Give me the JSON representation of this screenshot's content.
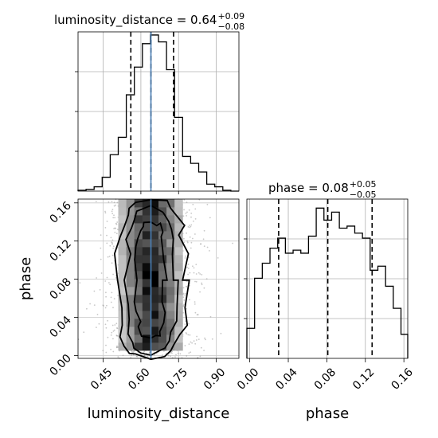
{
  "chart_data": [
    {
      "panel": "luminosity_distance-marginal",
      "type": "histogram",
      "title_main": "luminosity_distance = 0.64",
      "title_plus": "+0.09",
      "title_minus": "−0.08",
      "xlim": [
        0.35,
        0.99
      ],
      "bin_edges": [
        0.35,
        0.382,
        0.414,
        0.446,
        0.478,
        0.51,
        0.542,
        0.574,
        0.606,
        0.638,
        0.67,
        0.702,
        0.734,
        0.766,
        0.798,
        0.83,
        0.862,
        0.894,
        0.926,
        0.958,
        0.99
      ],
      "counts": [
        1,
        2,
        5,
        16,
        42,
        62,
        111,
        143,
        170,
        180,
        172,
        140,
        85,
        40,
        32,
        22,
        8,
        5,
        1,
        0
      ],
      "quantile_lines": [
        0.56,
        0.64,
        0.73
      ],
      "truth_value": 0.64,
      "grid": true,
      "truth_color": "#4a7fb5"
    },
    {
      "panel": "phase-vs-luminosity_distance",
      "type": "2d-density",
      "xlabel": "luminosity_distance",
      "ylabel": "phase",
      "xlim": [
        0.35,
        0.99
      ],
      "ylim": [
        -0.003,
        0.164
      ],
      "x_ticks": [
        "0.45",
        "0.60",
        "0.75",
        "0.90"
      ],
      "y_ticks": [
        "0.00",
        "0.04",
        "0.08",
        "0.12",
        "0.16"
      ],
      "x_tick_values": [
        0.45,
        0.6,
        0.75,
        0.9
      ],
      "y_tick_values": [
        0.0,
        0.04,
        0.08,
        0.12,
        0.16
      ],
      "truth_value": 0.64,
      "grid": true
    },
    {
      "panel": "phase-marginal",
      "type": "histogram",
      "title_main": "phase = 0.08",
      "title_plus": "+0.05",
      "title_minus": "−0.05",
      "xlabel": "phase",
      "xlim": [
        -0.003,
        0.164
      ],
      "x_ticks": [
        "0.00",
        "0.04",
        "0.08",
        "0.12",
        "0.16"
      ],
      "x_tick_values": [
        0.0,
        0.04,
        0.08,
        0.12,
        0.16
      ],
      "bin_edges": [
        -0.003,
        0.005,
        0.013,
        0.021,
        0.029,
        0.037,
        0.045,
        0.053,
        0.061,
        0.069,
        0.077,
        0.085,
        0.093,
        0.101,
        0.109,
        0.117,
        0.125,
        0.133,
        0.141,
        0.149,
        0.157,
        0.164
      ],
      "counts": [
        30,
        80,
        95,
        110,
        120,
        105,
        108,
        105,
        122,
        150,
        138,
        146,
        130,
        132,
        125,
        120,
        88,
        92,
        72,
        50,
        24
      ],
      "quantile_lines": [
        0.03,
        0.081,
        0.127
      ],
      "grid": true
    }
  ]
}
